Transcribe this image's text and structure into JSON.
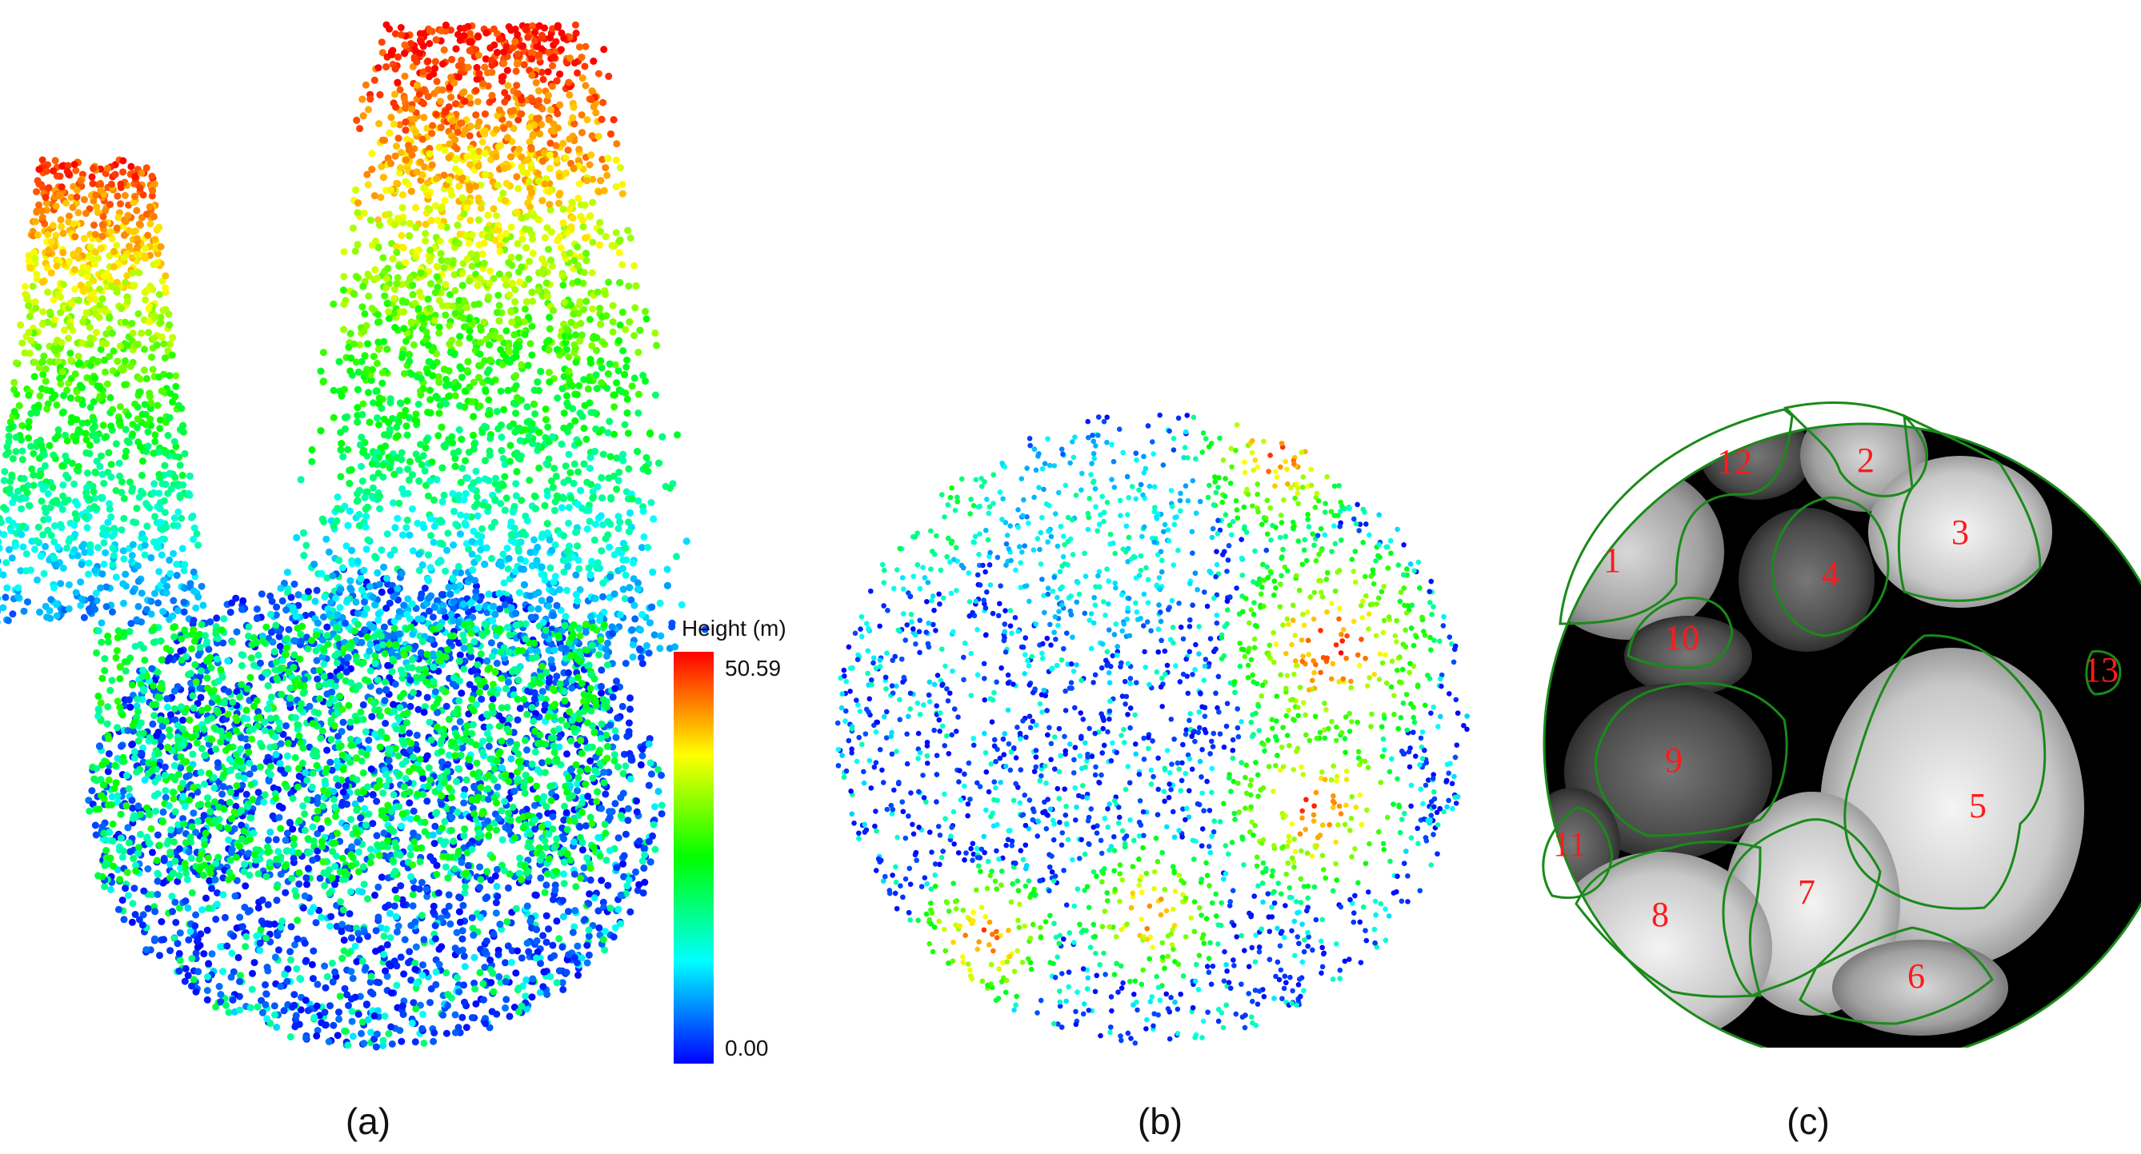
{
  "colorbar": {
    "title": "Height (m)",
    "max_label": "50.59",
    "min_label": "0.00",
    "colors": [
      "#0000ff",
      "#00ffff",
      "#00ff00",
      "#ffff00",
      "#ff0000"
    ]
  },
  "panels": [
    {
      "caption": "(a)"
    },
    {
      "caption": "(b)"
    },
    {
      "caption": "(c)"
    }
  ],
  "crowns": [
    {
      "id": "1"
    },
    {
      "id": "2"
    },
    {
      "id": "3"
    },
    {
      "id": "4"
    },
    {
      "id": "5"
    },
    {
      "id": "6"
    },
    {
      "id": "7"
    },
    {
      "id": "8"
    },
    {
      "id": "9"
    },
    {
      "id": "10"
    },
    {
      "id": "11"
    },
    {
      "id": "12"
    },
    {
      "id": "13"
    }
  ],
  "outline_color": "#1a8a1a"
}
